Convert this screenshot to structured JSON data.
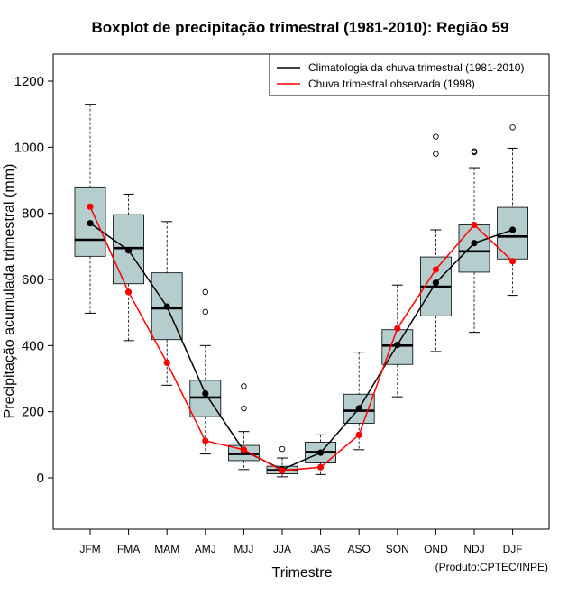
{
  "chart_data": {
    "type": "boxplot",
    "title": "Boxplot de precipitação trimestral (1981-2010): Região 59",
    "xlabel": "Trimestre",
    "ylabel": "Precipitação acumulada trimestral (mm)",
    "credit": "(Produto:CPTEC/INPE)",
    "ylim": [
      -150,
      1280
    ],
    "yticks": [
      0,
      200,
      400,
      600,
      800,
      1000,
      1200
    ],
    "categories": [
      "JFM",
      "FMA",
      "MAM",
      "AMJ",
      "MJJ",
      "JJA",
      "JAS",
      "ASO",
      "SON",
      "OND",
      "NDJ",
      "DJF"
    ],
    "boxes": [
      {
        "min": 498,
        "q1": 670,
        "median": 720,
        "q3": 880,
        "max": 1130,
        "outliers": []
      },
      {
        "min": 415,
        "q1": 587,
        "median": 695,
        "q3": 796,
        "max": 858,
        "outliers": []
      },
      {
        "min": 280,
        "q1": 418,
        "median": 513,
        "q3": 620,
        "max": 775,
        "outliers": []
      },
      {
        "min": 72,
        "q1": 185,
        "median": 243,
        "q3": 295,
        "max": 400,
        "outliers": [
          502,
          562
        ]
      },
      {
        "min": 25,
        "q1": 52,
        "median": 72,
        "q3": 98,
        "max": 140,
        "outliers": [
          210,
          277
        ]
      },
      {
        "min": 3,
        "q1": 12,
        "median": 23,
        "q3": 35,
        "max": 60,
        "outliers": [
          87
        ]
      },
      {
        "min": 10,
        "q1": 45,
        "median": 78,
        "q3": 108,
        "max": 130,
        "outliers": []
      },
      {
        "min": 85,
        "q1": 165,
        "median": 203,
        "q3": 253,
        "max": 380,
        "outliers": []
      },
      {
        "min": 245,
        "q1": 343,
        "median": 400,
        "q3": 448,
        "max": 583,
        "outliers": []
      },
      {
        "min": 382,
        "q1": 490,
        "median": 578,
        "q3": 668,
        "max": 750,
        "outliers": [
          980,
          1032
        ]
      },
      {
        "min": 440,
        "q1": 622,
        "median": 685,
        "q3": 765,
        "max": 938,
        "outliers": [
          985,
          988
        ]
      },
      {
        "min": 552,
        "q1": 662,
        "median": 730,
        "q3": 818,
        "max": 997,
        "outliers": [
          1060
        ]
      }
    ],
    "series": [
      {
        "name": "Climatologia da chuva trimestral (1981-2010)",
        "color": "#000000",
        "values": [
          770,
          688,
          518,
          255,
          82,
          25,
          76,
          210,
          402,
          590,
          710,
          750
        ]
      },
      {
        "name": "Chuva trimestral observada (1998)",
        "color": "#ff0000",
        "values": [
          820,
          562,
          348,
          112,
          85,
          22,
          32,
          130,
          452,
          630,
          765,
          655
        ]
      }
    ],
    "legend_position": "top-right",
    "box_fill": "#b5cdcd"
  }
}
